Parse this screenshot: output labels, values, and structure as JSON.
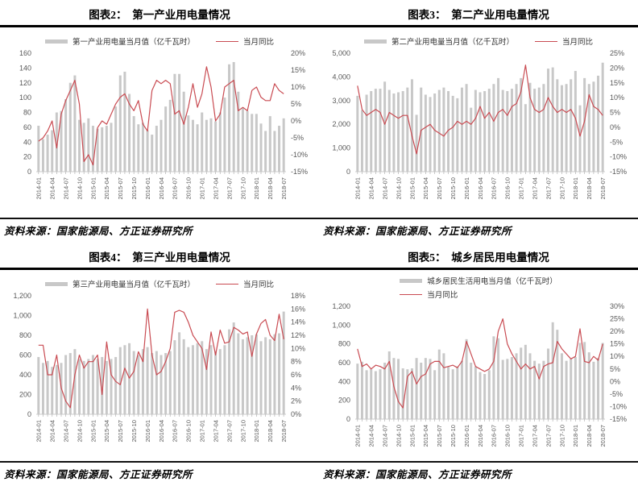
{
  "source_note": "资料来源：国家能源局、方正证券研究所",
  "colors": {
    "bar": "#c8c8c8",
    "line": "#c94b52",
    "axis_text": "#595959",
    "title": "#000000",
    "rule": "#000000"
  },
  "chart_data": [
    {
      "type": "bar",
      "subtype": "combo-bar-line",
      "title": "图表2：  第一产业用电量情况",
      "categories": [
        "2014-01",
        "2014-02",
        "2014-03",
        "2014-04",
        "2014-05",
        "2014-06",
        "2014-07",
        "2014-08",
        "2014-09",
        "2014-10",
        "2014-11",
        "2014-12",
        "2015-01",
        "2015-02",
        "2015-03",
        "2015-04",
        "2015-05",
        "2015-06",
        "2015-07",
        "2015-08",
        "2015-09",
        "2015-10",
        "2015-11",
        "2015-12",
        "2016-01",
        "2016-02",
        "2016-03",
        "2016-04",
        "2016-05",
        "2016-06",
        "2016-07",
        "2016-08",
        "2016-09",
        "2016-10",
        "2016-11",
        "2016-12",
        "2017-01",
        "2017-02",
        "2017-03",
        "2017-04",
        "2017-05",
        "2017-06",
        "2017-07",
        "2017-08",
        "2017-09",
        "2017-10",
        "2017-11",
        "2017-12",
        "2018-01",
        "2018-02",
        "2018-03",
        "2018-04",
        "2018-05",
        "2018-06",
        "2018-07"
      ],
      "x_tick_every": 3,
      "left_axis": {
        "min": 0,
        "max": 160,
        "step": 20,
        "format": "number"
      },
      "right_axis": {
        "min": -15,
        "max": 20,
        "step": 5,
        "format": "percent"
      },
      "series": [
        {
          "name": "第一产业用电量当月值（亿千瓦时）",
          "type": "bar",
          "axis": "left",
          "values": [
            62,
            44,
            50,
            56,
            80,
            82,
            98,
            120,
            130,
            70,
            66,
            72,
            62,
            58,
            60,
            62,
            66,
            88,
            130,
            135,
            105,
            75,
            64,
            66,
            56,
            50,
            62,
            70,
            88,
            97,
            132,
            132,
            108,
            76,
            70,
            64,
            80,
            70,
            72,
            68,
            80,
            100,
            145,
            148,
            108,
            86,
            82,
            78,
            78,
            65,
            55,
            75,
            55,
            62,
            72
          ]
        },
        {
          "name": "当月同比",
          "type": "line",
          "axis": "right",
          "values": [
            -6,
            -5,
            -3,
            0,
            -8,
            2,
            6,
            9,
            12,
            5,
            -12,
            -10,
            -13,
            -2,
            0,
            -1,
            2,
            5,
            7,
            8,
            5,
            3,
            6,
            -1,
            -3,
            9,
            12,
            11,
            12,
            11,
            2,
            3,
            -1,
            4,
            11,
            4,
            8,
            16,
            10,
            0,
            2,
            10,
            11,
            12,
            3,
            4,
            3,
            9,
            10,
            7,
            6,
            6,
            11,
            9,
            8
          ]
        }
      ],
      "legend_rows": 1
    },
    {
      "type": "bar",
      "subtype": "combo-bar-line",
      "title": "图表3：  第二产业用电量情况",
      "categories": [
        "2014-01",
        "2014-02",
        "2014-03",
        "2014-04",
        "2014-05",
        "2014-06",
        "2014-07",
        "2014-08",
        "2014-09",
        "2014-10",
        "2014-11",
        "2014-12",
        "2015-01",
        "2015-02",
        "2015-03",
        "2015-04",
        "2015-05",
        "2015-06",
        "2015-07",
        "2015-08",
        "2015-09",
        "2015-10",
        "2015-11",
        "2015-12",
        "2016-01",
        "2016-02",
        "2016-03",
        "2016-04",
        "2016-05",
        "2016-06",
        "2016-07",
        "2016-08",
        "2016-09",
        "2016-10",
        "2016-11",
        "2016-12",
        "2017-01",
        "2017-02",
        "2017-03",
        "2017-04",
        "2017-05",
        "2017-06",
        "2017-07",
        "2017-08",
        "2017-09",
        "2017-10",
        "2017-11",
        "2017-12",
        "2018-01",
        "2018-02",
        "2018-03",
        "2018-04",
        "2018-05",
        "2018-06",
        "2018-07"
      ],
      "x_tick_every": 3,
      "left_axis": {
        "min": 0,
        "max": 5000,
        "step": 1000,
        "format": "number"
      },
      "right_axis": {
        "min": -15,
        "max": 25,
        "step": 5,
        "format": "percent"
      },
      "series": [
        {
          "name": "第二产业用电量当月值（亿千瓦时）",
          "type": "bar",
          "axis": "left",
          "values": [
            3200,
            2600,
            3250,
            3400,
            3500,
            3500,
            3800,
            3450,
            3300,
            3350,
            3400,
            3550,
            3900,
            2400,
            3550,
            3250,
            3150,
            3300,
            3450,
            3550,
            3400,
            3200,
            3100,
            3550,
            3700,
            2700,
            3450,
            3350,
            3400,
            3500,
            3700,
            3950,
            3450,
            3400,
            3500,
            3700,
            3950,
            2850,
            3750,
            3500,
            3550,
            3700,
            4350,
            4400,
            3900,
            3650,
            3700,
            3900,
            4250,
            2800,
            3950,
            3700,
            3800,
            4050,
            4600
          ]
        },
        {
          "name": "当月同比",
          "type": "line",
          "axis": "right",
          "values": [
            14,
            6,
            4,
            5,
            6,
            5,
            1,
            5,
            4,
            3,
            4,
            4,
            -3,
            -9,
            -1,
            0,
            1,
            -1,
            -2,
            -3,
            -1,
            0,
            2,
            1,
            2,
            1,
            3,
            7,
            3,
            5,
            2,
            5,
            6,
            4,
            7,
            8,
            12,
            21,
            10,
            6,
            5,
            6,
            10,
            7,
            5,
            6,
            5,
            6,
            3,
            -3,
            2,
            11,
            7,
            6,
            4
          ]
        }
      ],
      "legend_rows": 1
    },
    {
      "type": "bar",
      "subtype": "combo-bar-line",
      "title": "图表4：  第三产业用电量情况",
      "categories": [
        "2014-01",
        "2014-02",
        "2014-03",
        "2014-04",
        "2014-05",
        "2014-06",
        "2014-07",
        "2014-08",
        "2014-09",
        "2014-10",
        "2014-11",
        "2014-12",
        "2015-01",
        "2015-02",
        "2015-03",
        "2015-04",
        "2015-05",
        "2015-06",
        "2015-07",
        "2015-08",
        "2015-09",
        "2015-10",
        "2015-11",
        "2015-12",
        "2016-01",
        "2016-02",
        "2016-03",
        "2016-04",
        "2016-05",
        "2016-06",
        "2016-07",
        "2016-08",
        "2016-09",
        "2016-10",
        "2016-11",
        "2016-12",
        "2017-01",
        "2017-02",
        "2017-03",
        "2017-04",
        "2017-05",
        "2017-06",
        "2017-07",
        "2017-08",
        "2017-09",
        "2017-10",
        "2017-11",
        "2017-12",
        "2018-01",
        "2018-02",
        "2018-03",
        "2018-04",
        "2018-05",
        "2018-06",
        "2018-07"
      ],
      "x_tick_every": 3,
      "left_axis": {
        "min": 0,
        "max": 1200,
        "step": 200,
        "format": "number"
      },
      "right_axis": {
        "min": 0,
        "max": 18,
        "step": 2,
        "format": "percent"
      },
      "series": [
        {
          "name": "第三产业用电量当月值（亿千瓦时）",
          "type": "bar",
          "axis": "left",
          "values": [
            580,
            520,
            540,
            480,
            500,
            520,
            600,
            620,
            660,
            560,
            540,
            560,
            600,
            560,
            580,
            540,
            560,
            580,
            680,
            700,
            720,
            640,
            600,
            660,
            680,
            620,
            640,
            600,
            620,
            640,
            750,
            830,
            760,
            680,
            700,
            720,
            740,
            660,
            700,
            640,
            660,
            700,
            860,
            930,
            820,
            760,
            780,
            800,
            810,
            740,
            780,
            760,
            810,
            820,
            1040
          ]
        },
        {
          "name": "当月同比",
          "type": "line",
          "axis": "right",
          "values": [
            10.5,
            10.5,
            6,
            6,
            9,
            4,
            2,
            1,
            6,
            9,
            7,
            8,
            8,
            9,
            3,
            11,
            6,
            5,
            4.5,
            7,
            5.5,
            6.5,
            9.5,
            8,
            16,
            9,
            6,
            6.5,
            8,
            10,
            15.5,
            15.8,
            15.5,
            14,
            12,
            11,
            10,
            6.8,
            12.5,
            9,
            12.8,
            10.8,
            11,
            13.2,
            12.8,
            12.2,
            12.5,
            8.8,
            12.2,
            13.8,
            14.4,
            12,
            11.2,
            15.2,
            11.4
          ]
        }
      ],
      "legend_rows": 1
    },
    {
      "type": "bar",
      "subtype": "combo-bar-line",
      "title": "图表5：  城乡居民用电量情况",
      "categories": [
        "2014-01",
        "2014-02",
        "2014-03",
        "2014-04",
        "2014-05",
        "2014-06",
        "2014-07",
        "2014-08",
        "2014-09",
        "2014-10",
        "2014-11",
        "2014-12",
        "2015-01",
        "2015-02",
        "2015-03",
        "2015-04",
        "2015-05",
        "2015-06",
        "2015-07",
        "2015-08",
        "2015-09",
        "2015-10",
        "2015-11",
        "2015-12",
        "2016-01",
        "2016-02",
        "2016-03",
        "2016-04",
        "2016-05",
        "2016-06",
        "2016-07",
        "2016-08",
        "2016-09",
        "2016-10",
        "2016-11",
        "2016-12",
        "2017-01",
        "2017-02",
        "2017-03",
        "2017-04",
        "2017-05",
        "2017-06",
        "2017-07",
        "2017-08",
        "2017-09",
        "2017-10",
        "2017-11",
        "2017-12",
        "2018-01",
        "2018-02",
        "2018-03",
        "2018-04",
        "2018-05",
        "2018-06",
        "2018-07"
      ],
      "x_tick_every": 3,
      "left_axis": {
        "min": 0,
        "max": 1200,
        "step": 200,
        "format": "number"
      },
      "right_axis": {
        "min": -15,
        "max": 30,
        "step": 5,
        "format": "percent"
      },
      "series": [
        {
          "name": "城乡居民生活用电当月值（亿千瓦时）",
          "type": "bar",
          "axis": "left",
          "values": [
            590,
            610,
            520,
            530,
            510,
            530,
            600,
            720,
            650,
            640,
            540,
            530,
            540,
            650,
            600,
            650,
            640,
            520,
            740,
            700,
            560,
            530,
            560,
            620,
            850,
            600,
            560,
            500,
            480,
            520,
            880,
            860,
            630,
            640,
            660,
            700,
            760,
            790,
            700,
            620,
            590,
            620,
            750,
            1030,
            950,
            700,
            620,
            640,
            660,
            810,
            820,
            710,
            610,
            650,
            810
          ]
        },
        {
          "name": "当月同比",
          "type": "line",
          "axis": "right",
          "values": [
            13,
            6,
            7,
            5,
            6.5,
            6,
            5,
            8,
            -2,
            -8,
            -10.5,
            2,
            4,
            -1,
            2,
            3,
            7,
            8,
            8,
            5.5,
            6,
            6.5,
            5.5,
            8,
            16,
            11,
            6,
            5,
            4,
            5,
            8,
            20,
            25,
            15,
            11,
            8,
            5,
            7,
            5,
            6,
            1,
            6,
            7,
            7.5,
            16,
            13,
            11,
            9,
            10,
            21,
            8,
            7.5,
            10,
            8.5,
            15
          ]
        }
      ],
      "legend_rows": 2
    }
  ]
}
